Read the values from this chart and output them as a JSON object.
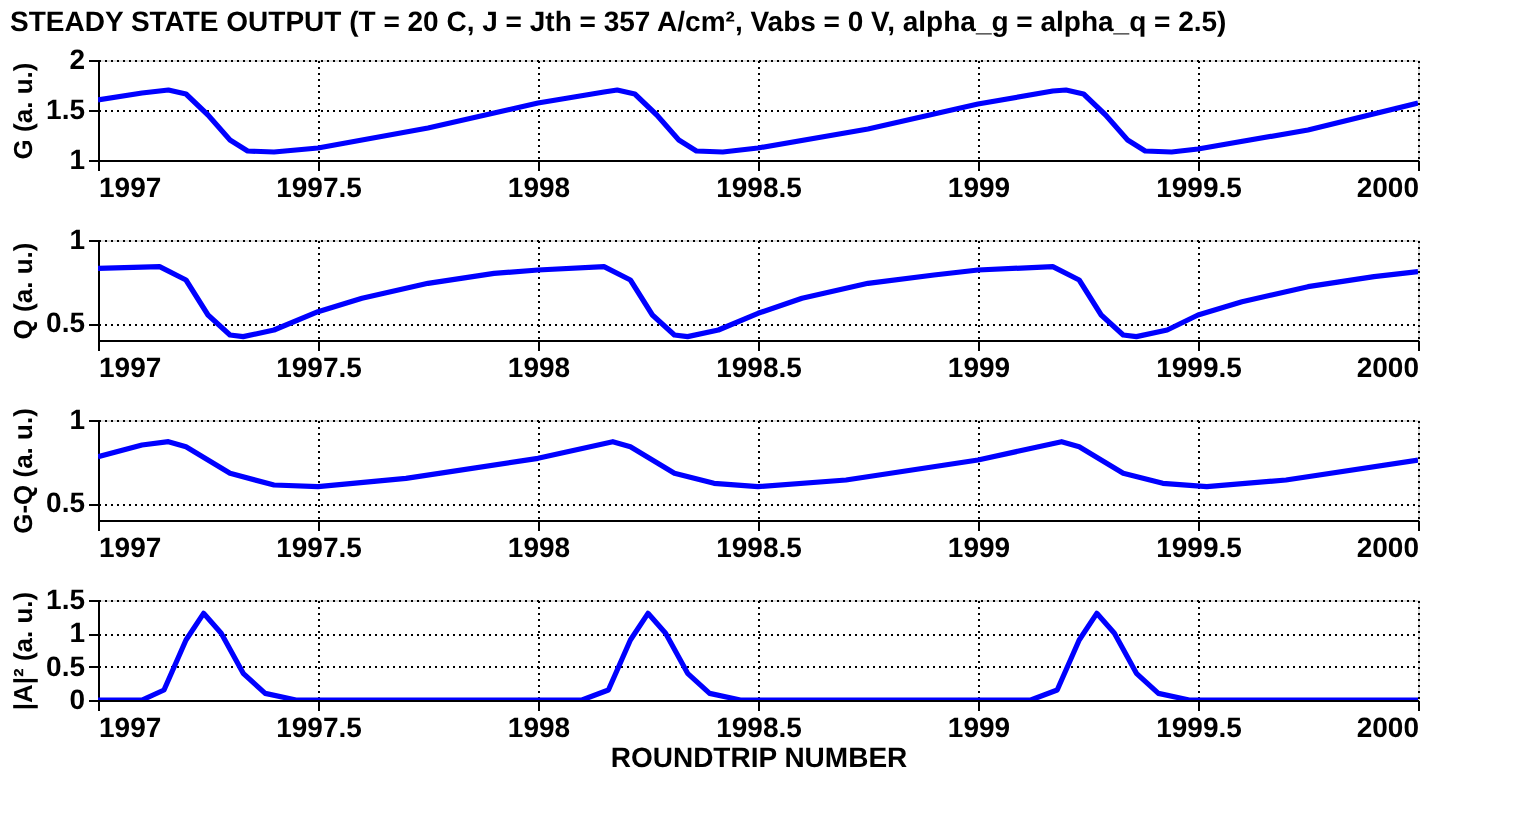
{
  "chart_data": [
    {
      "type": "line",
      "title": "STEADY STATE OUTPUT (T = 20 C, J = Jth = 357 A/cm², Vabs = 0 V, alpha_g = alpha_q = 2.5)",
      "ylabel": "G (a. u.)",
      "xlim": [
        1997,
        2000
      ],
      "xticks": [
        1997,
        1997.5,
        1998,
        1998.5,
        1999,
        1999.5,
        2000
      ],
      "ylim": [
        1,
        2
      ],
      "yticks": [
        1,
        1.5,
        2
      ],
      "grid": true,
      "line_style": "solid",
      "marker": "none",
      "x": [
        1997.0,
        1997.1,
        1997.16,
        1997.2,
        1997.25,
        1997.3,
        1997.34,
        1997.4,
        1997.5,
        1997.75,
        1998.0,
        1998.15,
        1998.18,
        1998.22,
        1998.27,
        1998.32,
        1998.36,
        1998.42,
        1998.5,
        1998.75,
        1999.0,
        1999.17,
        1999.2,
        1999.24,
        1999.29,
        1999.34,
        1999.38,
        1999.44,
        1999.5,
        1999.75,
        2000.0
      ],
      "series": [
        {
          "color": "#0000ff",
          "values": [
            1.6,
            1.67,
            1.7,
            1.66,
            1.45,
            1.2,
            1.09,
            1.08,
            1.12,
            1.32,
            1.57,
            1.68,
            1.7,
            1.66,
            1.45,
            1.2,
            1.09,
            1.08,
            1.12,
            1.31,
            1.56,
            1.69,
            1.7,
            1.66,
            1.45,
            1.2,
            1.09,
            1.08,
            1.11,
            1.3,
            1.57
          ]
        }
      ]
    },
    {
      "type": "line",
      "ylabel": "Q (a. u.)",
      "xlim": [
        1997,
        2000
      ],
      "xticks": [
        1997,
        1997.5,
        1998,
        1998.5,
        1999,
        1999.5,
        2000
      ],
      "ylim": [
        0.4,
        1
      ],
      "yticks": [
        0.5,
        1
      ],
      "grid": true,
      "line_style": "solid",
      "marker": "none",
      "x": [
        1997.0,
        1997.14,
        1997.2,
        1997.25,
        1997.3,
        1997.33,
        1997.4,
        1997.5,
        1997.6,
        1997.75,
        1997.9,
        1998.0,
        1998.15,
        1998.21,
        1998.26,
        1998.31,
        1998.34,
        1998.41,
        1998.5,
        1998.6,
        1998.75,
        1998.9,
        1999.0,
        1999.17,
        1999.23,
        1999.28,
        1999.33,
        1999.36,
        1999.43,
        1999.5,
        1999.6,
        1999.75,
        1999.9,
        2000.0
      ],
      "series": [
        {
          "color": "#0000ff",
          "values": [
            0.83,
            0.84,
            0.76,
            0.55,
            0.43,
            0.42,
            0.46,
            0.57,
            0.65,
            0.74,
            0.8,
            0.82,
            0.84,
            0.76,
            0.55,
            0.43,
            0.42,
            0.46,
            0.56,
            0.65,
            0.74,
            0.79,
            0.82,
            0.84,
            0.76,
            0.55,
            0.43,
            0.42,
            0.46,
            0.55,
            0.63,
            0.72,
            0.78,
            0.81
          ]
        }
      ]
    },
    {
      "type": "line",
      "ylabel": "G-Q (a. u.)",
      "xlim": [
        1997,
        2000
      ],
      "xticks": [
        1997,
        1997.5,
        1998,
        1998.5,
        1999,
        1999.5,
        2000
      ],
      "ylim": [
        0.4,
        1
      ],
      "yticks": [
        0.5,
        1
      ],
      "grid": true,
      "line_style": "solid",
      "marker": "none",
      "x": [
        1997.0,
        1997.1,
        1997.16,
        1997.2,
        1997.3,
        1997.4,
        1997.5,
        1997.7,
        1998.0,
        1998.17,
        1998.21,
        1998.31,
        1998.4,
        1998.5,
        1998.7,
        1999.0,
        1999.19,
        1999.23,
        1999.33,
        1999.42,
        1999.52,
        1999.7,
        2000.0
      ],
      "series": [
        {
          "color": "#0000ff",
          "values": [
            0.78,
            0.85,
            0.87,
            0.84,
            0.68,
            0.61,
            0.6,
            0.65,
            0.77,
            0.87,
            0.84,
            0.68,
            0.62,
            0.6,
            0.64,
            0.76,
            0.87,
            0.84,
            0.68,
            0.62,
            0.6,
            0.64,
            0.76
          ]
        }
      ]
    },
    {
      "type": "line",
      "ylabel": "|A|² (a. u.)",
      "xlabel": "ROUNDTRIP NUMBER",
      "xlim": [
        1997,
        2000
      ],
      "xticks": [
        1997,
        1997.5,
        1998,
        1998.5,
        1999,
        1999.5,
        2000
      ],
      "ylim": [
        0,
        1.5
      ],
      "yticks": [
        0,
        0.5,
        1,
        1.5
      ],
      "grid": true,
      "line_style": "solid",
      "marker": "none",
      "x": [
        1997.0,
        1997.1,
        1997.15,
        1997.2,
        1997.24,
        1997.28,
        1997.33,
        1997.38,
        1997.45,
        1998.1,
        1998.16,
        1998.21,
        1998.25,
        1998.29,
        1998.34,
        1998.39,
        1998.46,
        1999.12,
        1999.18,
        1999.23,
        1999.27,
        1999.31,
        1999.36,
        1999.41,
        1999.48,
        2000.0
      ],
      "series": [
        {
          "color": "#0000ff",
          "values": [
            0,
            0,
            0.15,
            0.9,
            1.3,
            1.0,
            0.4,
            0.1,
            0,
            0,
            0.15,
            0.9,
            1.3,
            1.0,
            0.4,
            0.1,
            0,
            0,
            0.15,
            0.9,
            1.3,
            1.0,
            0.4,
            0.1,
            0,
            0
          ]
        }
      ]
    }
  ]
}
